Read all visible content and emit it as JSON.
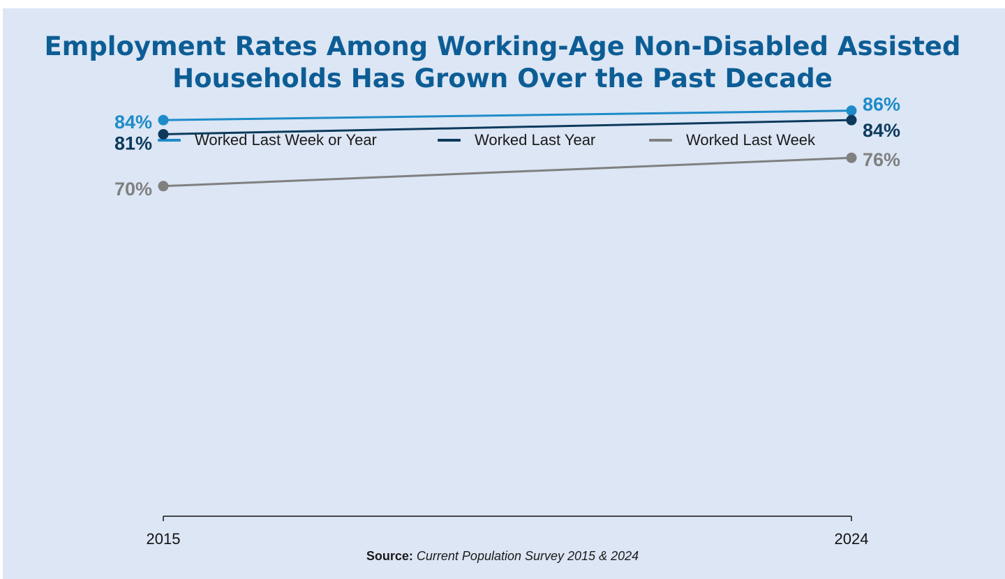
{
  "chart_data": {
    "type": "line",
    "title": "Employment Rates Among Working-Age Non-Disabled Assisted Households Has Grown Over the Past Decade",
    "x": [
      "2015",
      "2024"
    ],
    "series": [
      {
        "name": "Worked Last Week or Year",
        "values": [
          84,
          86
        ],
        "labels": [
          "84%",
          "86%"
        ],
        "color": "#1e8bc9"
      },
      {
        "name": "Worked Last Year",
        "values": [
          81,
          84
        ],
        "labels": [
          "81%",
          "84%"
        ],
        "color": "#0d3a5c"
      },
      {
        "name": "Worked Last Week",
        "values": [
          70,
          76
        ],
        "labels": [
          "70%",
          "76%"
        ],
        "color": "#808080"
      }
    ],
    "ylim": [
      0,
      100
    ],
    "y_axis_visible": false,
    "grid": false,
    "legend_position": "top"
  },
  "source": {
    "label": "Source:",
    "text": "Current Population Survey 2015 & 2024"
  }
}
